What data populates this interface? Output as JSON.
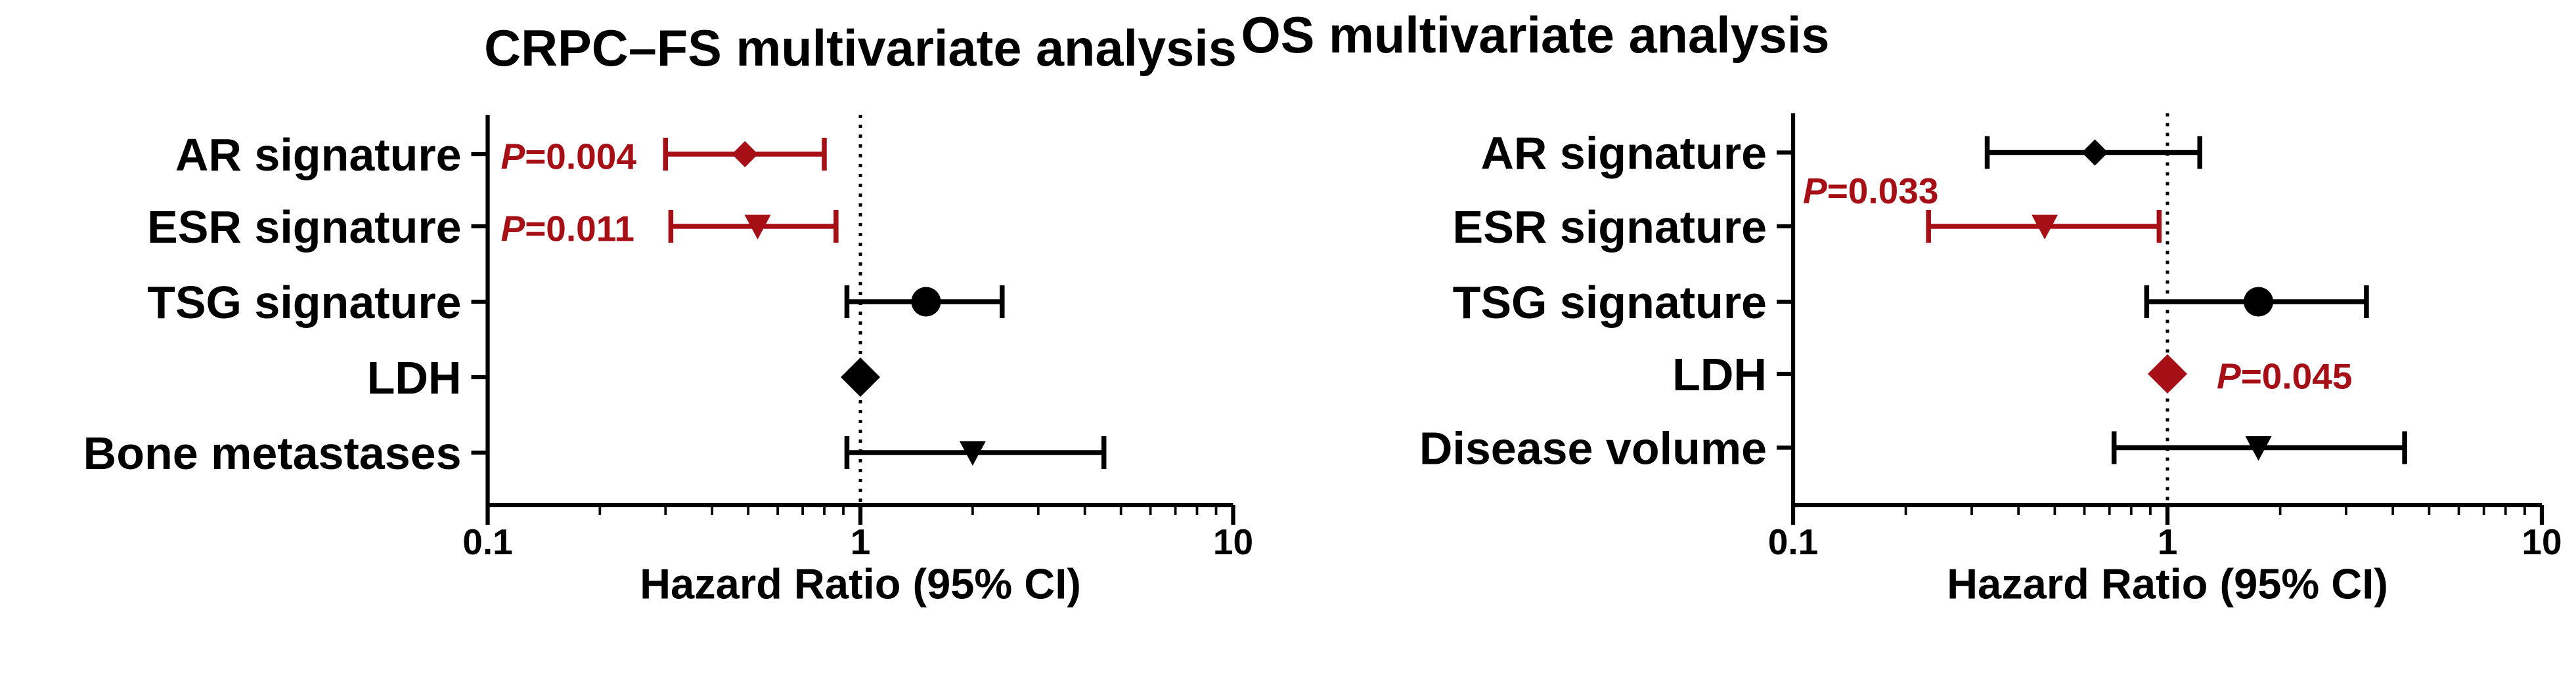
{
  "colors": {
    "black": "#000000",
    "red": "#a50f15"
  },
  "chart_data": [
    {
      "type": "forest",
      "title": "CRPC–FS multivariate analysis",
      "xlabel": "Hazard Ratio (95% CI)",
      "ylabel": "",
      "x_scale": "log",
      "xlim": [
        0.1,
        10
      ],
      "x_ticks": [
        "0.1",
        "1",
        "10"
      ],
      "reference_line": 1,
      "rows": [
        {
          "label": "AR signature",
          "hr": 0.49,
          "ci": [
            0.3,
            0.8
          ],
          "marker": "diamond",
          "color": "red",
          "p_label": "P",
          "p_value": "=0.004"
        },
        {
          "label": "ESR signature",
          "hr": 0.53,
          "ci": [
            0.31,
            0.86
          ],
          "marker": "triangle-down",
          "color": "red",
          "p_label": "P",
          "p_value": "=0.011"
        },
        {
          "label": "TSG signature",
          "hr": 1.5,
          "ci": [
            0.92,
            2.4
          ],
          "marker": "circle",
          "color": "black"
        },
        {
          "label": "LDH",
          "hr": 1.0,
          "ci": [
            0.99,
            1.01
          ],
          "marker": "diamond-large",
          "color": "black"
        },
        {
          "label": "Bone metastases",
          "hr": 2.0,
          "ci": [
            0.92,
            4.5
          ],
          "marker": "triangle-down",
          "color": "black"
        }
      ]
    },
    {
      "type": "forest",
      "title": "OS multivariate analysis",
      "xlabel": "Hazard Ratio (95% CI)",
      "ylabel": "",
      "x_scale": "log",
      "xlim": [
        0.1,
        10
      ],
      "x_ticks": [
        "0.1",
        "1",
        "10"
      ],
      "reference_line": 1,
      "rows": [
        {
          "label": "AR signature",
          "hr": 0.64,
          "ci": [
            0.33,
            1.22
          ],
          "marker": "diamond",
          "color": "black"
        },
        {
          "label": "ESR signature",
          "hr": 0.47,
          "ci": [
            0.23,
            0.95
          ],
          "marker": "triangle-down",
          "color": "red",
          "p_label": "P",
          "p_value": "=0.033"
        },
        {
          "label": "TSG signature",
          "hr": 1.75,
          "ci": [
            0.88,
            3.4
          ],
          "marker": "circle",
          "color": "black"
        },
        {
          "label": "LDH",
          "hr": 1.0,
          "ci": [
            0.99,
            1.01
          ],
          "marker": "diamond-large",
          "color": "red",
          "p_label": "P",
          "p_value": "=0.045"
        },
        {
          "label": "Disease volume",
          "hr": 1.75,
          "ci": [
            0.72,
            4.3
          ],
          "marker": "triangle-down",
          "color": "black"
        }
      ]
    }
  ]
}
